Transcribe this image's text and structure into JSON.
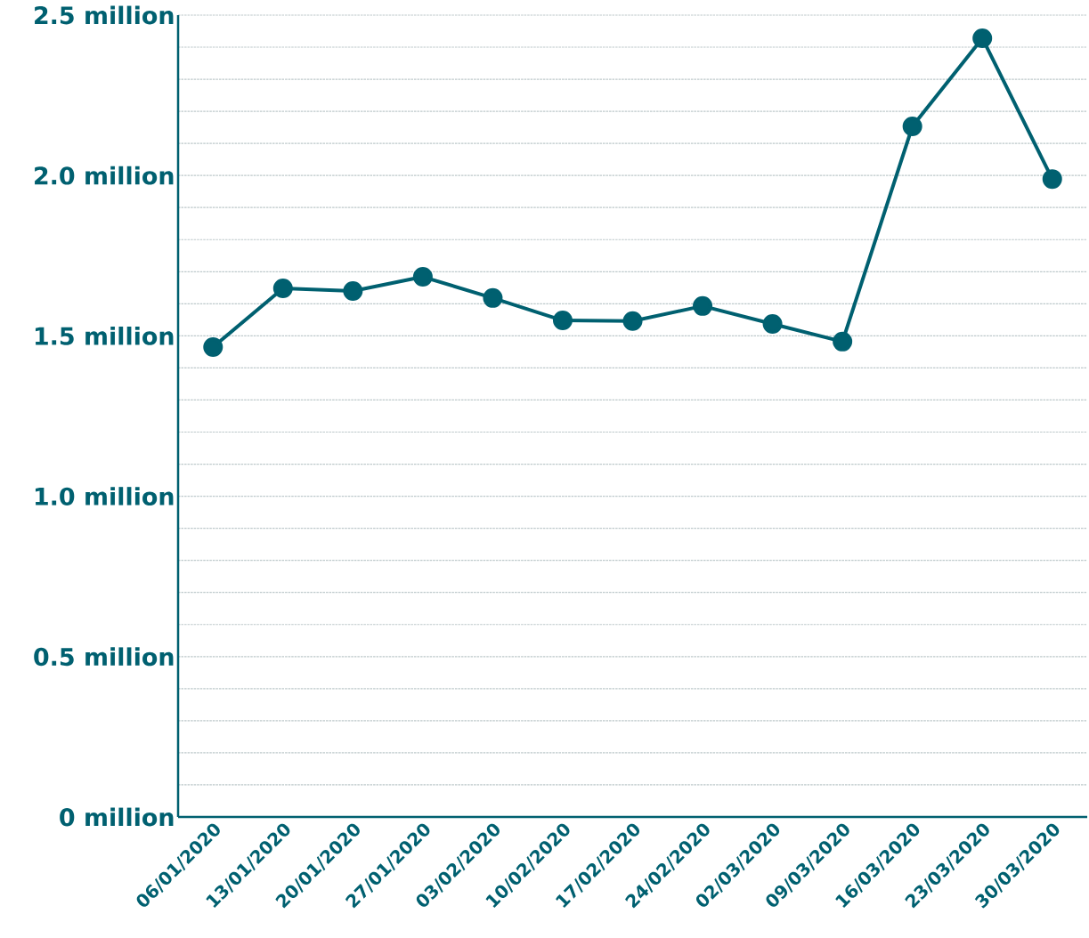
{
  "chart_data": {
    "type": "line",
    "categories": [
      "06/01/2020",
      "13/01/2020",
      "20/01/2020",
      "27/01/2020",
      "03/02/2020",
      "10/02/2020",
      "17/02/2020",
      "24/02/2020",
      "02/03/2020",
      "09/03/2020",
      "16/03/2020",
      "23/03/2020",
      "30/03/2020"
    ],
    "values": [
      1.465,
      1.648,
      1.64,
      1.684,
      1.618,
      1.548,
      1.546,
      1.593,
      1.537,
      1.482,
      2.153,
      2.428,
      1.989
    ],
    "color": "#006070",
    "ylim": [
      0,
      2.5
    ],
    "yticks": [
      {
        "value": 0,
        "label": "0 million"
      },
      {
        "value": 0.1,
        "label": null
      },
      {
        "value": 0.2,
        "label": null
      },
      {
        "value": 0.3,
        "label": null
      },
      {
        "value": 0.4,
        "label": null
      },
      {
        "value": 0.5,
        "label": "0.5 million"
      },
      {
        "value": 0.6,
        "label": null
      },
      {
        "value": 0.7,
        "label": null
      },
      {
        "value": 0.8,
        "label": null
      },
      {
        "value": 0.9,
        "label": null
      },
      {
        "value": 1.0,
        "label": "1.0 million"
      },
      {
        "value": 1.1,
        "label": null
      },
      {
        "value": 1.2,
        "label": null
      },
      {
        "value": 1.3,
        "label": null
      },
      {
        "value": 1.4,
        "label": null
      },
      {
        "value": 1.5,
        "label": "1.5 million"
      },
      {
        "value": 1.6,
        "label": null
      },
      {
        "value": 1.7,
        "label": null
      },
      {
        "value": 1.8,
        "label": null
      },
      {
        "value": 1.9,
        "label": null
      },
      {
        "value": 2.0,
        "label": "2.0 million"
      },
      {
        "value": 2.1,
        "label": null
      },
      {
        "value": 2.2,
        "label": null
      },
      {
        "value": 2.3,
        "label": null
      },
      {
        "value": 2.4,
        "label": null
      },
      {
        "value": 2.5,
        "label": "2.5 million"
      }
    ],
    "grid": "y",
    "marker": "circle",
    "line_style": "solid"
  }
}
